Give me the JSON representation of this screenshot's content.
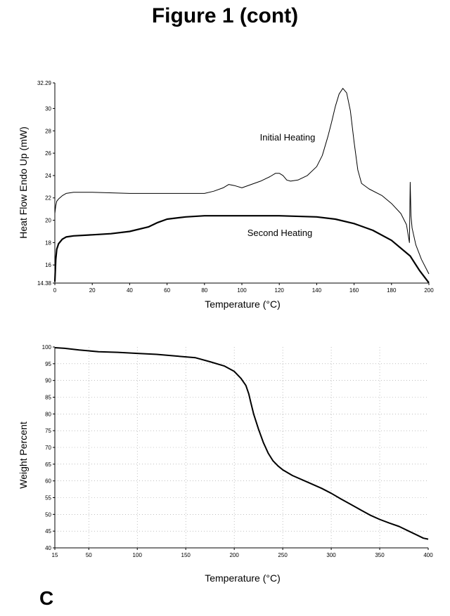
{
  "figure_title": "Figure 1 (cont)",
  "panel_letter": "C",
  "chart_data": [
    {
      "type": "line",
      "title": "",
      "xlabel": "Temperature (°C)",
      "ylabel": "Heat Flow Endo Up (mW)",
      "xlim": [
        0,
        200
      ],
      "ylim": [
        14.38,
        32.29
      ],
      "x_ticks": [
        "0",
        "20",
        "40",
        "60",
        "80",
        "100",
        "120",
        "140",
        "160",
        "180",
        "200"
      ],
      "y_ticks": [
        "14.38",
        "16",
        "18",
        "20",
        "22",
        "24",
        "26",
        "28",
        "30",
        "32.29"
      ],
      "grid": false,
      "annotations": [
        "Initial Heating",
        "Second Heating"
      ],
      "series": [
        {
          "name": "Initial Heating",
          "x": [
            0,
            0.5,
            1,
            2,
            4,
            6,
            10,
            20,
            40,
            60,
            80,
            85,
            90,
            93,
            96,
            100,
            105,
            110,
            115,
            118,
            120,
            122,
            124,
            126,
            130,
            135,
            140,
            143,
            146,
            148,
            150,
            152,
            154,
            156,
            158,
            160,
            162,
            164,
            168,
            175,
            180,
            185,
            188,
            189.6,
            190,
            190.4,
            191,
            193,
            196,
            200
          ],
          "y": [
            20.6,
            21.3,
            21.7,
            21.9,
            22.2,
            22.4,
            22.5,
            22.5,
            22.4,
            22.4,
            22.4,
            22.6,
            22.9,
            23.2,
            23.1,
            22.9,
            23.2,
            23.5,
            23.9,
            24.2,
            24.2,
            24.0,
            23.6,
            23.5,
            23.6,
            24.0,
            24.8,
            25.8,
            27.5,
            28.8,
            30.2,
            31.3,
            31.8,
            31.4,
            29.8,
            27.0,
            24.5,
            23.3,
            22.8,
            22.2,
            21.5,
            20.6,
            19.6,
            18.0,
            23.4,
            20.4,
            19.3,
            17.8,
            16.5,
            15.2
          ]
        },
        {
          "name": "Second Heating",
          "x": [
            0,
            0.5,
            1,
            2,
            4,
            6,
            10,
            20,
            30,
            40,
            50,
            55,
            60,
            70,
            80,
            90,
            100,
            120,
            140,
            150,
            160,
            170,
            180,
            190,
            195,
            200
          ],
          "y": [
            14.5,
            16.5,
            17.4,
            17.9,
            18.3,
            18.5,
            18.6,
            18.7,
            18.8,
            19.0,
            19.4,
            19.8,
            20.1,
            20.3,
            20.4,
            20.4,
            20.4,
            20.4,
            20.3,
            20.1,
            19.7,
            19.1,
            18.2,
            16.8,
            15.5,
            14.4
          ]
        }
      ]
    },
    {
      "type": "line",
      "title": "",
      "xlabel": "Temperature (°C)",
      "ylabel": "Weight Percent",
      "xlim": [
        15,
        400
      ],
      "ylim": [
        40,
        100
      ],
      "x_ticks": [
        "15",
        "50",
        "100",
        "150",
        "200",
        "250",
        "300",
        "350",
        "400"
      ],
      "y_ticks": [
        "40",
        "45",
        "50",
        "55",
        "60",
        "65",
        "70",
        "75",
        "80",
        "85",
        "90",
        "95",
        "100"
      ],
      "grid": true,
      "series": [
        {
          "x": [
            15,
            25,
            40,
            60,
            80,
            100,
            120,
            140,
            160,
            175,
            190,
            200,
            207,
            212,
            215,
            217,
            220,
            225,
            230,
            235,
            240,
            245,
            250,
            260,
            275,
            290,
            300,
            310,
            320,
            330,
            340,
            350,
            360,
            370,
            380,
            390,
            395,
            400
          ],
          "y": [
            99.8,
            99.6,
            99.1,
            98.6,
            98.4,
            98.1,
            97.8,
            97.3,
            96.8,
            95.6,
            94.3,
            92.7,
            90.6,
            88.5,
            86.0,
            83.5,
            80.0,
            75.5,
            71.5,
            68.3,
            66.0,
            64.5,
            63.3,
            61.6,
            59.7,
            57.8,
            56.3,
            54.6,
            53.0,
            51.4,
            49.8,
            48.5,
            47.4,
            46.4,
            45.0,
            43.6,
            42.9,
            42.6
          ]
        }
      ]
    }
  ]
}
